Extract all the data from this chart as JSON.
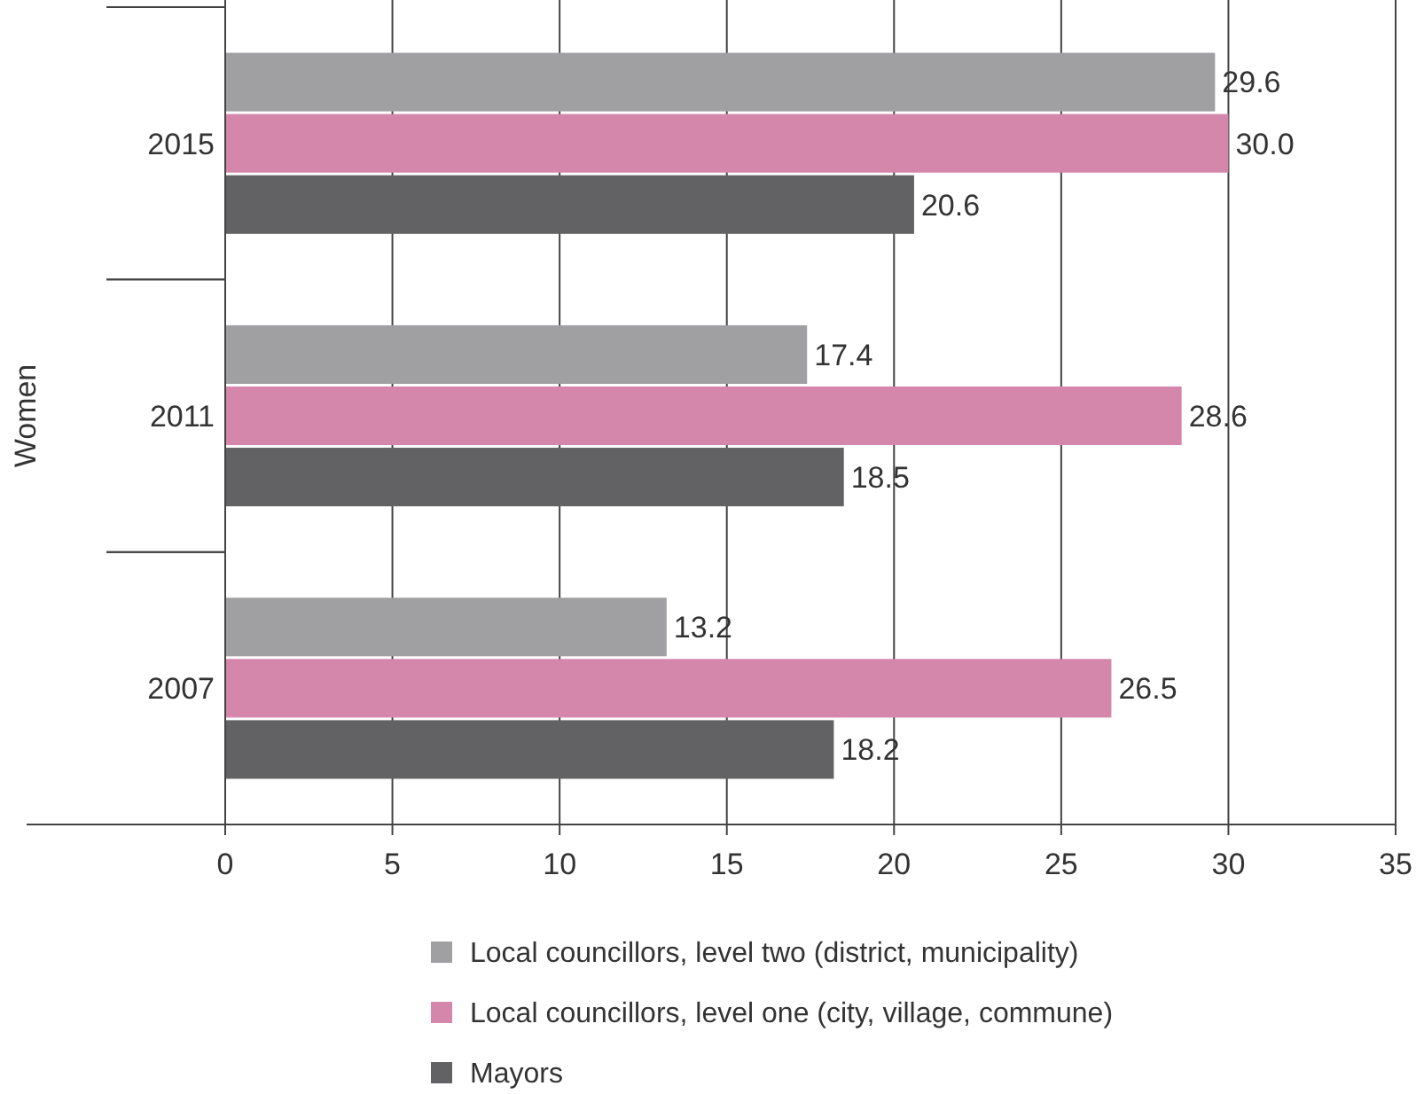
{
  "chart_data": {
    "type": "bar",
    "orientation": "horizontal",
    "ylabel": "Women",
    "categories": [
      "2015",
      "2011",
      "2007"
    ],
    "series": [
      {
        "name": "Local councillors, level two (district, municipality)",
        "color": "#a0a0a3",
        "values": [
          29.6,
          17.4,
          13.2
        ],
        "value_labels": [
          "29.6",
          "17.4",
          "13.2"
        ]
      },
      {
        "name": "Local councillors, level one (city, village, commune)",
        "color": "#d486ab",
        "values": [
          30.0,
          28.6,
          26.5
        ],
        "value_labels": [
          "30.0",
          "28.6",
          "26.5"
        ]
      },
      {
        "name": "Mayors",
        "color": "#626264",
        "values": [
          20.6,
          18.5,
          18.2
        ],
        "value_labels": [
          "20.6",
          "18.5",
          "18.2"
        ]
      }
    ],
    "xlim": [
      0,
      35
    ],
    "xticks": [
      0,
      5,
      10,
      15,
      20,
      25,
      30,
      35
    ],
    "grid": "x",
    "legend": "bottom"
  }
}
